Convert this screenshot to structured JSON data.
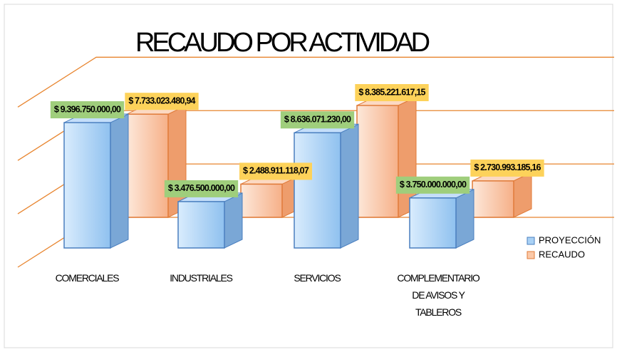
{
  "chart_data": {
    "type": "bar3d",
    "title": "RECAUDO POR ACTIVIDAD",
    "categories": [
      "COMERCIALES",
      "INDUSTRIALES",
      "SERVICIOS",
      "COMPLEMENTARIO DE AVISOS Y TABLEROS"
    ],
    "series": [
      {
        "name": "PROYECCIÓN",
        "color": "#a9d1f5",
        "values": [
          9396750000,
          3476500000,
          8636071230,
          3750000000
        ],
        "value_labels": [
          "$ 9.396.750.000,00",
          "$ 3.476.500.000,00",
          "$ 8.636.071.230,00",
          "$ 3.750.000.000,00"
        ],
        "label_color": "#9fce7c"
      },
      {
        "name": "RECAUDO",
        "color": "#fbc9a8",
        "values": [
          7733023480.94,
          2488911118.07,
          8385221617.15,
          2730993185.16
        ],
        "value_labels": [
          "$ 7.733.023.480,94",
          "$ 2.488.911.118,07",
          "$ 8.385.221.617,15",
          "$ 2.730.993.185,16"
        ],
        "label_color": "#fdd25a"
      }
    ],
    "ylim": [
      0,
      12000000000
    ],
    "yticks": [
      0,
      4000000000,
      8000000000,
      12000000000
    ],
    "grid": true,
    "grid_color": "#e8852f",
    "legend": "right"
  }
}
